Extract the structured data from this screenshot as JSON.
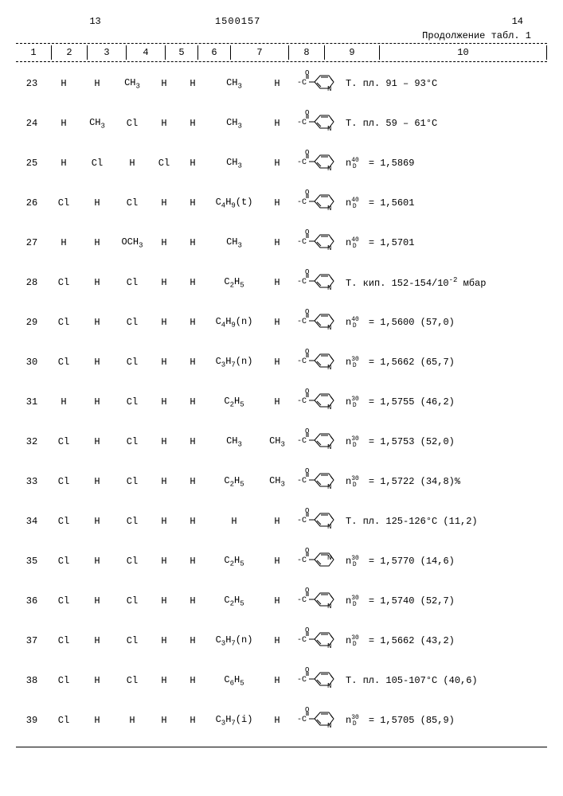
{
  "header": {
    "page_left": "13",
    "doc_number": "1500157",
    "page_right": "14",
    "continuation": "Продолжение табл. 1"
  },
  "columns": [
    "1",
    "2",
    "3",
    "4",
    "5",
    "6",
    "7",
    "8",
    "9",
    "10"
  ],
  "rows": [
    {
      "n": "23",
      "c2": "H",
      "c3": "H",
      "c4": "CH₃",
      "c5": "H",
      "c6": "H",
      "c7": "CH₃",
      "c8": "H",
      "c10": "Т. пл. 91 – 93°C"
    },
    {
      "n": "24",
      "c2": "H",
      "c3": "CH₃",
      "c4": "Cl",
      "c5": "H",
      "c6": "H",
      "c7": "CH₃",
      "c8": "H",
      "c10": "Т. пл. 59 – 61°C"
    },
    {
      "n": "25",
      "c2": "H",
      "c3": "Cl",
      "c4": "H",
      "c5": "Cl",
      "c6": "H",
      "c7": "CH₃",
      "c8": "H",
      "c10_nd": {
        "sup": "40",
        "val": "1,5869"
      }
    },
    {
      "n": "26",
      "c2": "Cl",
      "c3": "H",
      "c4": "Cl",
      "c5": "H",
      "c6": "H",
      "c7": "C₄H₉(t)",
      "c8": "H",
      "c10_nd": {
        "sup": "40",
        "val": "1,5601"
      }
    },
    {
      "n": "27",
      "c2": "H",
      "c3": "H",
      "c4": "OCH₃",
      "c5": "H",
      "c6": "H",
      "c7": "CH₃",
      "c8": "H",
      "c10_nd": {
        "sup": "40",
        "val": "1,5701"
      }
    },
    {
      "n": "28",
      "c2": "Cl",
      "c3": "H",
      "c4": "Cl",
      "c5": "H",
      "c6": "H",
      "c7": "C₂H₅",
      "c8": "H",
      "c10": "Т. кип. 152-154/10⁻² мбар"
    },
    {
      "n": "29",
      "c2": "Cl",
      "c3": "H",
      "c4": "Cl",
      "c5": "H",
      "c6": "H",
      "c7": "C₄H₉(n)",
      "c8": "H",
      "c10_nd": {
        "sup": "40",
        "val": "1,5600",
        "extra": "(57,0)"
      }
    },
    {
      "n": "30",
      "c2": "Cl",
      "c3": "H",
      "c4": "Cl",
      "c5": "H",
      "c6": "H",
      "c7": "C₃H₇(n)",
      "c8": "H",
      "c10_nd": {
        "sup": "30",
        "val": "1,5662",
        "extra": "(65,7)"
      }
    },
    {
      "n": "31",
      "c2": "H",
      "c3": "H",
      "c4": "Cl",
      "c5": "H",
      "c6": "H",
      "c7": "C₂H₅",
      "c8": "H",
      "c10_nd": {
        "sup": "30",
        "val": "1,5755",
        "extra": "(46,2)"
      }
    },
    {
      "n": "32",
      "c2": "Cl",
      "c3": "H",
      "c4": "Cl",
      "c5": "H",
      "c6": "H",
      "c7": "CH₃",
      "c8": "CH₃",
      "c10_nd": {
        "sup": "30",
        "val": "1,5753",
        "extra": "(52,0)"
      }
    },
    {
      "n": "33",
      "c2": "Cl",
      "c3": "H",
      "c4": "Cl",
      "c5": "H",
      "c6": "H",
      "c7": "C₂H₅",
      "c8": "CH₃",
      "c10_nd": {
        "sup": "30",
        "val": "1,5722",
        "extra": "(34,8)%"
      }
    },
    {
      "n": "34",
      "c2": "Cl",
      "c3": "H",
      "c4": "Cl",
      "c5": "H",
      "c6": "H",
      "c7": "H",
      "c8": "H",
      "c10": "Т. пл. 125-126°C (11,2)"
    },
    {
      "n": "35",
      "c2": "Cl",
      "c3": "H",
      "c4": "Cl",
      "c5": "H",
      "c6": "H",
      "c7": "C₂H₅",
      "c8": "H",
      "c10_nd": {
        "sup": "30",
        "val": "1,5770",
        "extra": "(14,6)"
      },
      "isomer": "2"
    },
    {
      "n": "36",
      "c2": "Cl",
      "c3": "H",
      "c4": "Cl",
      "c5": "H",
      "c6": "H",
      "c7": "C₂H₅",
      "c8": "H",
      "c10_nd": {
        "sup": "30",
        "val": "1,5740",
        "extra": "(52,7)"
      }
    },
    {
      "n": "37",
      "c2": "Cl",
      "c3": "H",
      "c4": "Cl",
      "c5": "H",
      "c6": "H",
      "c7": "C₃H₇(n)",
      "c8": "H",
      "c10_nd": {
        "sup": "30",
        "val": "1,5662",
        "extra": "(43,2)"
      }
    },
    {
      "n": "38",
      "c2": "Cl",
      "c3": "H",
      "c4": "Cl",
      "c5": "H",
      "c6": "H",
      "c7": "C₆H₅",
      "c8": "H",
      "c10": "Т. пл. 105-107°C (40,6)"
    },
    {
      "n": "39",
      "c2": "Cl",
      "c3": "H",
      "c4": "H",
      "c5": "H",
      "c6": "H",
      "c7": "C₃H₇(i)",
      "c8": "H",
      "c10_nd": {
        "sup": "30",
        "val": "1,5705",
        "extra": "(85,9)"
      }
    }
  ],
  "style": {
    "font_family": "Courier New",
    "font_size_pt": 12,
    "header_font_size_pt": 12,
    "text_color": "#000000",
    "background_color": "#ffffff",
    "border_color": "#000000",
    "dash_color": "#000000"
  }
}
